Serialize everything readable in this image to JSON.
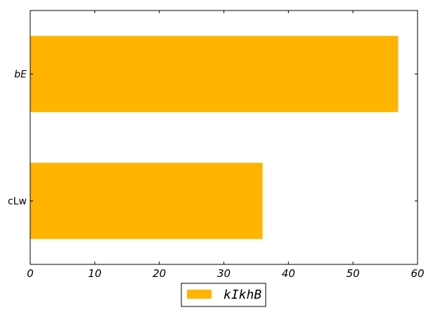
{
  "chart_data": {
    "type": "bar",
    "orientation": "horizontal",
    "categories": [
      "cLw",
      "bE"
    ],
    "category_label_styles": [
      "normal",
      "italic"
    ],
    "series": [
      {
        "name": "kIkhB",
        "values": [
          36,
          57
        ],
        "color": "#FFB400"
      }
    ],
    "xlim": [
      0,
      60
    ],
    "xticks": [
      0,
      10,
      20,
      30,
      40,
      50,
      60
    ],
    "xlabel": "",
    "ylabel": "",
    "title": "",
    "grid": false,
    "legend": {
      "placement": "bottom-center",
      "entries": [
        "kIkhB"
      ]
    }
  }
}
